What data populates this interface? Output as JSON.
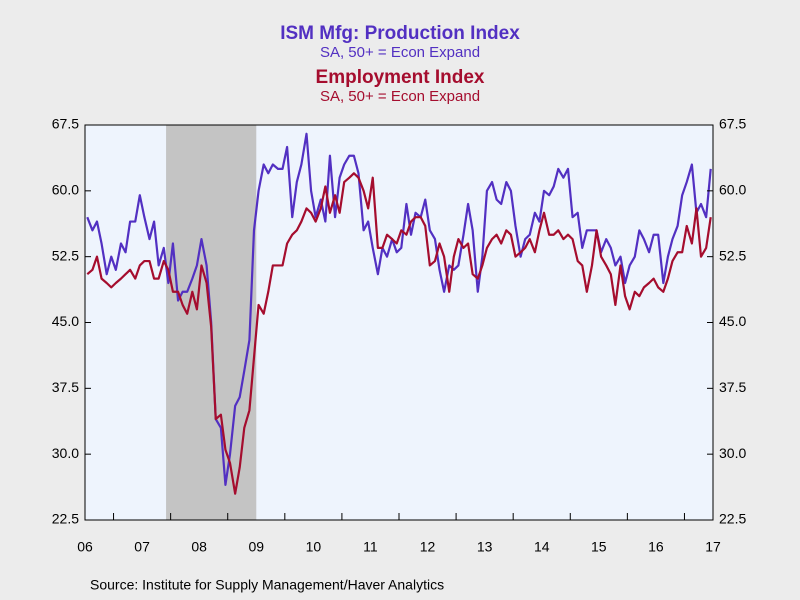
{
  "chart_data": {
    "type": "line",
    "source": "Source:  Institute for Supply Management/Haver Analytics",
    "xlim": [
      2006.5,
      2017.5
    ],
    "xticks": [
      {
        "value": 2006.5,
        "label": "06"
      },
      {
        "value": 2007.5,
        "label": "07"
      },
      {
        "value": 2008.5,
        "label": "08"
      },
      {
        "value": 2009.5,
        "label": "09"
      },
      {
        "value": 2010.5,
        "label": "10"
      },
      {
        "value": 2011.5,
        "label": "11"
      },
      {
        "value": 2012.5,
        "label": "12"
      },
      {
        "value": 2013.5,
        "label": "13"
      },
      {
        "value": 2014.5,
        "label": "14"
      },
      {
        "value": 2015.5,
        "label": "15"
      },
      {
        "value": 2016.5,
        "label": "16"
      },
      {
        "value": 2017.5,
        "label": "17"
      }
    ],
    "xminorticks": [
      2007,
      2008,
      2009,
      2010,
      2011,
      2012,
      2013,
      2014,
      2015,
      2016,
      2017
    ],
    "ylim": [
      22.5,
      67.5
    ],
    "yticks": [
      22.5,
      {
        "value": 30,
        "label": "30.0"
      },
      37.5,
      {
        "value": 45,
        "label": "45.0"
      },
      52.5,
      {
        "value": 60,
        "label": "60.0"
      },
      67.5
    ],
    "shaded_periods": [
      [
        2007.92,
        2009.5
      ]
    ],
    "x": [
      2006.54,
      2006.63,
      2006.71,
      2006.79,
      2006.88,
      2006.96,
      2007.04,
      2007.13,
      2007.21,
      2007.29,
      2007.38,
      2007.46,
      2007.54,
      2007.63,
      2007.71,
      2007.79,
      2007.88,
      2007.96,
      2008.04,
      2008.13,
      2008.21,
      2008.29,
      2008.38,
      2008.46,
      2008.54,
      2008.63,
      2008.71,
      2008.79,
      2008.88,
      2008.96,
      2009.04,
      2009.13,
      2009.21,
      2009.29,
      2009.38,
      2009.46,
      2009.54,
      2009.63,
      2009.71,
      2009.79,
      2009.88,
      2009.96,
      2010.04,
      2010.13,
      2010.21,
      2010.29,
      2010.38,
      2010.46,
      2010.54,
      2010.63,
      2010.71,
      2010.79,
      2010.88,
      2010.96,
      2011.04,
      2011.13,
      2011.21,
      2011.29,
      2011.38,
      2011.46,
      2011.54,
      2011.63,
      2011.71,
      2011.79,
      2011.88,
      2011.96,
      2012.04,
      2012.13,
      2012.21,
      2012.29,
      2012.38,
      2012.46,
      2012.54,
      2012.63,
      2012.71,
      2012.79,
      2012.88,
      2012.96,
      2013.04,
      2013.13,
      2013.21,
      2013.29,
      2013.38,
      2013.46,
      2013.54,
      2013.63,
      2013.71,
      2013.79,
      2013.88,
      2013.96,
      2014.04,
      2014.13,
      2014.21,
      2014.29,
      2014.38,
      2014.46,
      2014.54,
      2014.63,
      2014.71,
      2014.79,
      2014.88,
      2014.96,
      2015.04,
      2015.13,
      2015.21,
      2015.29,
      2015.38,
      2015.46,
      2015.54,
      2015.63,
      2015.71,
      2015.79,
      2015.88,
      2015.96,
      2016.04,
      2016.13,
      2016.21,
      2016.29,
      2016.38,
      2016.46,
      2016.54,
      2016.63,
      2016.71,
      2016.79,
      2016.88,
      2016.96,
      2017.04,
      2017.13,
      2017.21,
      2017.29,
      2017.38,
      2017.46
    ],
    "series": [
      {
        "name": "ISM Mfg: Production Index",
        "subtitle": "SA, 50+ = Econ Expand",
        "color": "#5230c2",
        "values": [
          57,
          55.5,
          56.5,
          54,
          50.5,
          52.5,
          51,
          54,
          53,
          56.5,
          56.5,
          59.5,
          57,
          54.5,
          56.5,
          51.5,
          53.5,
          49.5,
          54,
          47.5,
          48.5,
          48.5,
          50,
          51.5,
          54.5,
          51.5,
          45,
          34,
          33,
          26.5,
          30,
          35.5,
          36.5,
          39.5,
          43,
          55.5,
          60,
          63,
          62,
          63,
          62.5,
          62.5,
          65,
          57,
          61,
          63,
          66.5,
          60,
          57,
          59,
          56.5,
          64,
          57,
          61.5,
          63,
          64,
          64,
          62,
          55.5,
          56.5,
          53.5,
          50.5,
          53.5,
          52.5,
          54.5,
          53,
          53.5,
          58.5,
          55,
          57.5,
          57,
          59,
          55.5,
          54.5,
          51,
          48.5,
          51.5,
          51,
          51.5,
          55,
          58.5,
          55.5,
          48.5,
          52.5,
          60,
          61,
          59,
          58.5,
          61,
          60,
          56,
          52.5,
          54.5,
          55,
          57.5,
          56.5,
          60,
          59.5,
          60.5,
          62.5,
          61.5,
          62.5,
          57,
          57.5,
          53.5,
          55.5,
          55.5,
          55.5,
          53,
          54.5,
          53.5,
          51.5,
          52.5,
          49.5,
          51.5,
          52.5,
          55.5,
          54.5,
          53,
          55,
          55,
          49.5,
          52.5,
          54.5,
          56,
          59.5,
          61,
          63,
          57.5,
          58.5,
          57,
          62.5
        ]
      },
      {
        "name": "Employment Index",
        "subtitle": "SA, 50+ = Econ Expand",
        "color": "#a50d2e",
        "values": [
          50.5,
          51,
          52.5,
          50,
          49.5,
          49,
          49.5,
          50,
          50.5,
          51,
          50,
          51.5,
          52,
          52,
          50,
          50,
          52,
          51,
          48.5,
          48.5,
          47,
          46,
          48.5,
          46.5,
          51.5,
          49.5,
          44.5,
          34,
          34.5,
          30.5,
          29,
          25.5,
          28.5,
          33,
          35,
          41,
          47,
          46,
          48.5,
          51.5,
          51.5,
          51.5,
          54,
          55,
          55.5,
          56.5,
          58,
          57.5,
          56.5,
          58,
          60.5,
          57.5,
          59.5,
          57.5,
          61,
          61.5,
          62,
          61.5,
          60,
          58,
          61.5,
          53.5,
          53.5,
          55,
          54.5,
          54,
          55.5,
          55,
          56.5,
          57,
          57,
          56,
          51.5,
          52,
          54,
          52.5,
          48.5,
          52.5,
          54.5,
          53.5,
          54,
          50.5,
          50,
          51.5,
          53.5,
          54.5,
          55,
          54,
          55.5,
          55,
          52.5,
          53,
          53.5,
          54.5,
          53,
          55.5,
          57.5,
          55,
          55,
          55.5,
          54.5,
          55,
          54.5,
          52,
          51.5,
          48.5,
          51.5,
          55.5,
          52.5,
          51.5,
          50.5,
          47,
          51.5,
          48,
          46.5,
          48.5,
          48,
          49,
          49.5,
          50,
          49,
          48.5,
          50,
          52,
          53,
          53,
          56,
          54,
          58,
          52.5,
          53.5,
          57
        ]
      }
    ]
  }
}
